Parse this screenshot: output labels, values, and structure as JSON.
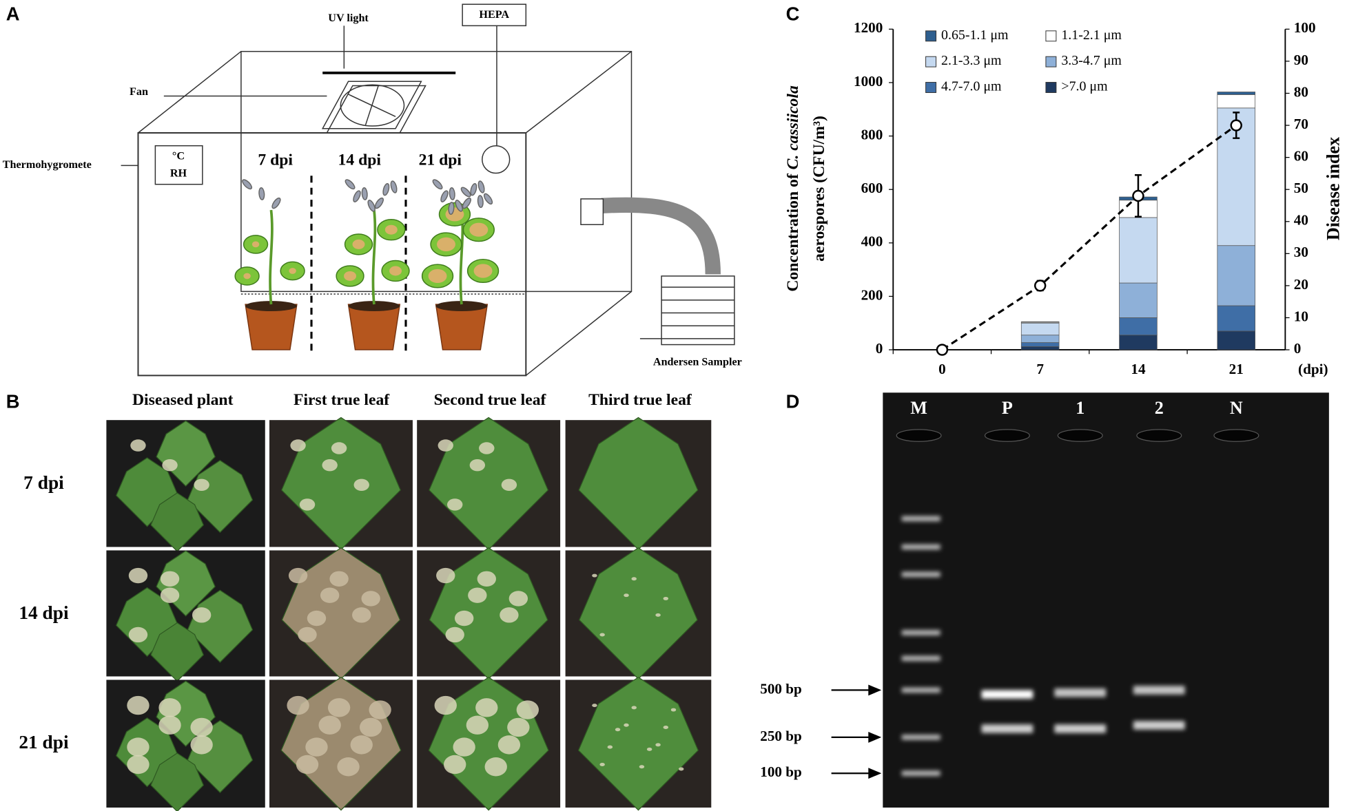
{
  "panel_labels": [
    "A",
    "B",
    "C",
    "D"
  ],
  "diagram": {
    "uv_light": "UV light",
    "hepa": "HEPA",
    "fan": "Fan",
    "thermo": "Thermohygromete",
    "thermo_box": [
      "°C",
      "RH"
    ],
    "stages": [
      "7 dpi",
      "14 dpi",
      "21 dpi"
    ],
    "sampler": "Andersen Sampler"
  },
  "photos": {
    "columns": [
      "Diseased plant",
      "First true leaf",
      "Second true leaf",
      "Third true leaf"
    ],
    "rows": [
      "7 dpi",
      "14 dpi",
      "21 dpi"
    ]
  },
  "chart_data": {
    "type": "bar",
    "stacked": true,
    "ylabel": {
      "prefix": "Concentration  of ",
      "species": "C. cassiicola",
      "suffix": "aerospores  (CFU/m³)"
    },
    "y2label": "Disease index",
    "xlabel": "(dpi)",
    "categories": [
      "0",
      "7",
      "14",
      "21"
    ],
    "series": [
      {
        "name": "0.65-1.1  μm",
        "color": "#2e5f8f",
        "values": [
          0,
          2,
          12,
          10
        ]
      },
      {
        "name": "1.1-2.1  μm",
        "color": "#ffffff",
        "values": [
          0,
          3,
          65,
          50
        ]
      },
      {
        "name": "2.1-3.3  μm",
        "color": "#c5d9f0",
        "values": [
          0,
          45,
          245,
          515
        ]
      },
      {
        "name": "3.3-4.7  μm",
        "color": "#8eb0d8",
        "values": [
          0,
          28,
          130,
          225
        ]
      },
      {
        "name": "4.7-7.0  μm",
        "color": "#3f6ea6",
        "values": [
          0,
          15,
          65,
          95
        ]
      },
      {
        "name": ">7.0  μm",
        "color": "#1f3a60",
        "values": [
          0,
          12,
          55,
          70
        ]
      },
      {
        "type": "line",
        "axis": "y2",
        "color": "#000000",
        "values": [
          0,
          20,
          48,
          70
        ],
        "errors": [
          0,
          1.5,
          6.5,
          4
        ]
      }
    ],
    "ylim": [
      0,
      1200
    ],
    "yticks": [
      0,
      200,
      400,
      600,
      800,
      1000,
      1200
    ],
    "y2lim": [
      0,
      100
    ],
    "y2ticks": [
      0,
      10,
      20,
      30,
      40,
      50,
      60,
      70,
      80,
      90,
      100
    ]
  },
  "gel": {
    "lanes": [
      "M",
      "P",
      "1",
      "2",
      "N"
    ],
    "markers": [
      "500 bp",
      "250 bp",
      "100 bp"
    ]
  }
}
